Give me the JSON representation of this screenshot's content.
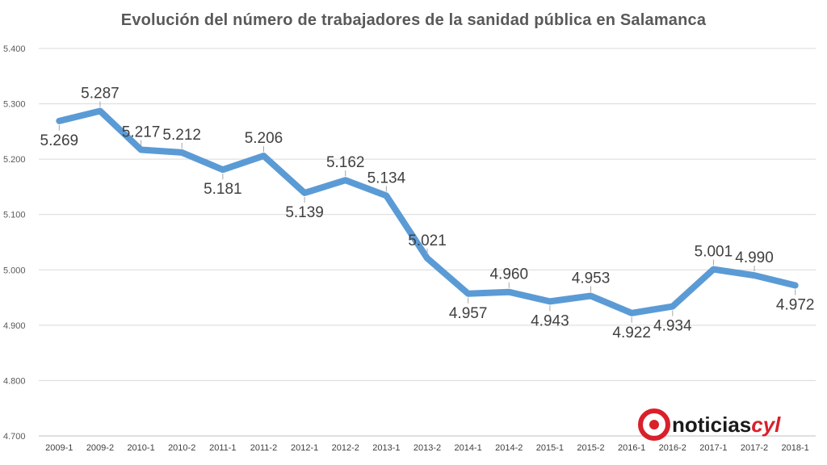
{
  "chart_data": {
    "type": "line",
    "title": "Evolución del número de trabajadores de la sanidad pública en Salamanca",
    "xlabel": "",
    "ylabel": "",
    "ylim": [
      4700,
      5400
    ],
    "grid": true,
    "legend": "none",
    "yticks": [
      4700,
      4800,
      4900,
      5000,
      5100,
      5200,
      5300,
      5400
    ],
    "ytick_labels": [
      "4.700",
      "4.800",
      "4.900",
      "5.000",
      "5.100",
      "5.200",
      "5.300",
      "5.400"
    ],
    "categories": [
      "2009-1",
      "2009-2",
      "2010-1",
      "2010-2",
      "2011-1",
      "2011-2",
      "2012-1",
      "2012-2",
      "2013-1",
      "2013-2",
      "2014-1",
      "2014-2",
      "2015-1",
      "2015-2",
      "2016-1",
      "2016-2",
      "2017-1",
      "2017-2",
      "2018-1"
    ],
    "series": [
      {
        "name": "Trabajadores",
        "color": "#5b9bd5",
        "values": [
          5269,
          5287,
          5217,
          5212,
          5181,
          5206,
          5139,
          5162,
          5134,
          5021,
          4957,
          4960,
          4943,
          4953,
          4922,
          4934,
          5001,
          4990,
          4972
        ],
        "labels": [
          "5.269",
          "5.287",
          "5.217",
          "5.212",
          "5.181",
          "5.206",
          "5.139",
          "5.162",
          "5.134",
          "5.021",
          "4.957",
          "4.960",
          "4.943",
          "4.953",
          "4.922",
          "4.934",
          "5.001",
          "4.990",
          "4.972"
        ]
      }
    ]
  },
  "logo": {
    "text_a": "noticias",
    "text_b": "cyl",
    "color": "#d9202b"
  }
}
